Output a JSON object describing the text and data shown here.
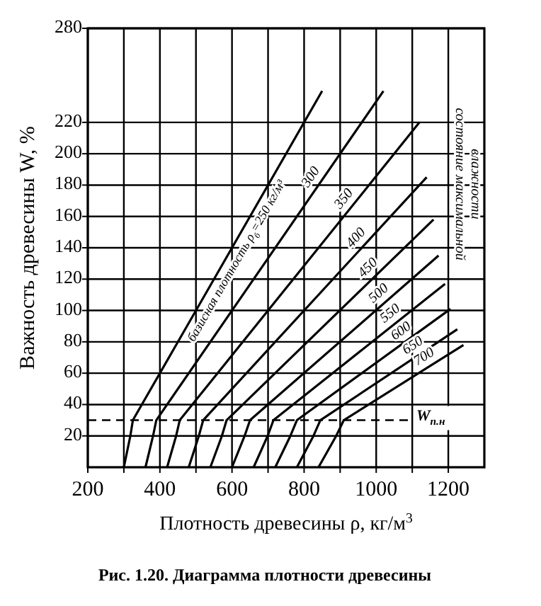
{
  "chart_data": {
    "type": "line",
    "title": "Рис. 1.20. Диаграмма плотности древесины",
    "xlabel": "Плотность древесины ρ, кг/м$^{3}$",
    "ylabel": "Важность древесины W, %",
    "xlim": [
      200,
      1300
    ],
    "xticks": [
      200,
      {
        "value": 300,
        "label": null
      },
      400,
      {
        "value": 500,
        "label": null
      },
      600,
      {
        "value": 700,
        "label": null
      },
      800,
      {
        "value": 900,
        "label": null
      },
      1000,
      {
        "value": 1100,
        "label": null
      },
      1200
    ],
    "ylim": [
      0,
      280
    ],
    "yticks": [
      20,
      40,
      60,
      80,
      100,
      120,
      140,
      160,
      180,
      200,
      220,
      280
    ],
    "grid": true,
    "line_style": "solid",
    "marker": "none",
    "series": [
      {
        "name": "базисная плотность ρ$_{б}$=250 кг/м³",
        "color": "#000000",
        "x": [
          300,
          318,
          325,
          850
        ],
        "values": [
          0,
          20,
          30,
          240
        ]
      },
      {
        "name": "300",
        "color": "#000000",
        "x": [
          360,
          381,
          390,
          1020
        ],
        "values": [
          0,
          20,
          30,
          240
        ]
      },
      {
        "name": "350",
        "color": "#000000",
        "x": [
          420,
          445,
          455,
          1120
        ],
        "values": [
          0,
          20,
          30,
          220
        ]
      },
      {
        "name": "400",
        "color": "#000000",
        "x": [
          480,
          508,
          520,
          1140
        ],
        "values": [
          0,
          20,
          30,
          185
        ]
      },
      {
        "name": "450",
        "color": "#000000",
        "x": [
          540,
          572,
          585,
          1159
        ],
        "values": [
          0,
          20,
          30,
          158
        ]
      },
      {
        "name": "500",
        "color": "#000000",
        "x": [
          600,
          635,
          650,
          1173
        ],
        "values": [
          0,
          20,
          30,
          135
        ]
      },
      {
        "name": "550",
        "color": "#000000",
        "x": [
          660,
          699,
          715,
          1191
        ],
        "values": [
          0,
          20,
          30,
          117
        ]
      },
      {
        "name": "600",
        "color": "#000000",
        "x": [
          720,
          762,
          780,
          1206
        ],
        "values": [
          0,
          20,
          30,
          101
        ]
      },
      {
        "name": "650",
        "color": "#000000",
        "x": [
          780,
          826,
          845,
          1225
        ],
        "values": [
          0,
          20,
          30,
          88
        ]
      },
      {
        "name": "700",
        "color": "#000000",
        "x": [
          840,
          889,
          910,
          1242
        ],
        "values": [
          0,
          20,
          30,
          78
        ]
      }
    ],
    "ref_lines": [
      {
        "axis": "y",
        "value": 30,
        "label": "W$_{п.н}$",
        "line_style": "dashed",
        "color": "#000000"
      }
    ],
    "annotations": [
      "состояние максимальной влажности"
    ]
  }
}
